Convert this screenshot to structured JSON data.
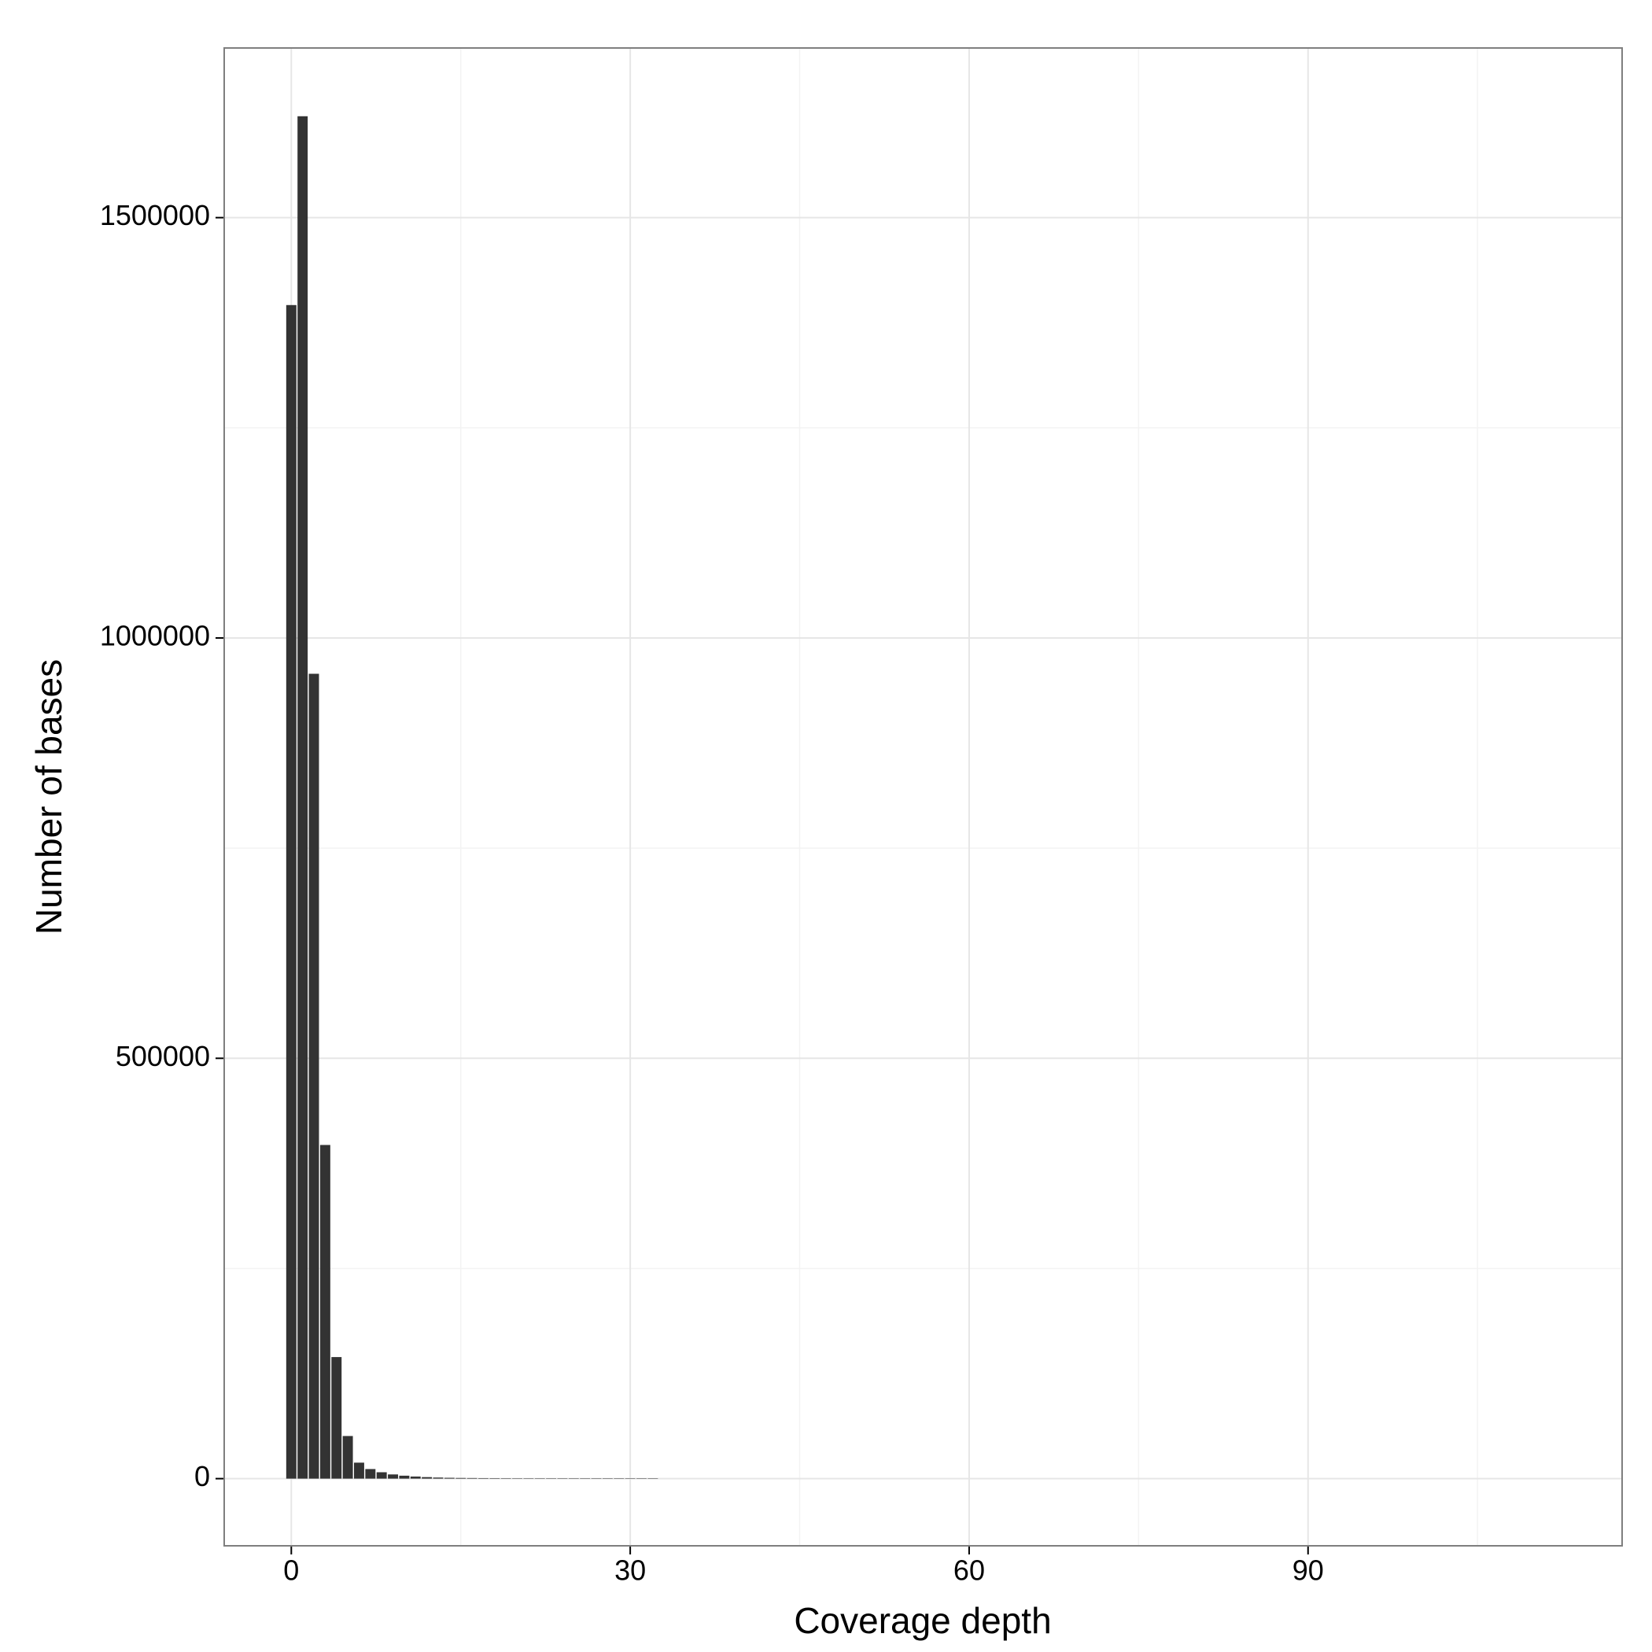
{
  "chart_data": {
    "type": "bar",
    "x_label": "Coverage depth",
    "y_label": "Number of bases",
    "x": [
      0,
      1,
      2,
      3,
      4,
      5,
      6,
      7,
      8,
      9,
      10,
      11,
      12,
      13,
      14,
      15,
      16,
      17,
      18,
      19,
      20,
      21,
      22,
      23,
      24,
      25,
      26,
      27,
      28,
      29,
      30,
      31,
      32
    ],
    "values": [
      1396000,
      1620600,
      957400,
      396900,
      144600,
      50700,
      19000,
      11400,
      7600,
      5000,
      3500,
      2500,
      1800,
      1300,
      1000,
      800,
      700,
      600,
      550,
      500,
      450,
      400,
      380,
      350,
      320,
      300,
      280,
      260,
      240,
      220,
      200,
      180,
      160
    ],
    "bar_width": 0.9,
    "color": "#333333",
    "xlim": [
      -5.94,
      117.8
    ],
    "ylim": [
      -79900,
      1701800
    ],
    "xticks": [
      0,
      30,
      60,
      90
    ],
    "yticks": [
      0,
      500000,
      1000000,
      1500000
    ],
    "x_minor_ticks": [
      15,
      45,
      75,
      105
    ],
    "y_minor_ticks": [
      250000,
      750000,
      1250000
    ],
    "grid": true
  }
}
